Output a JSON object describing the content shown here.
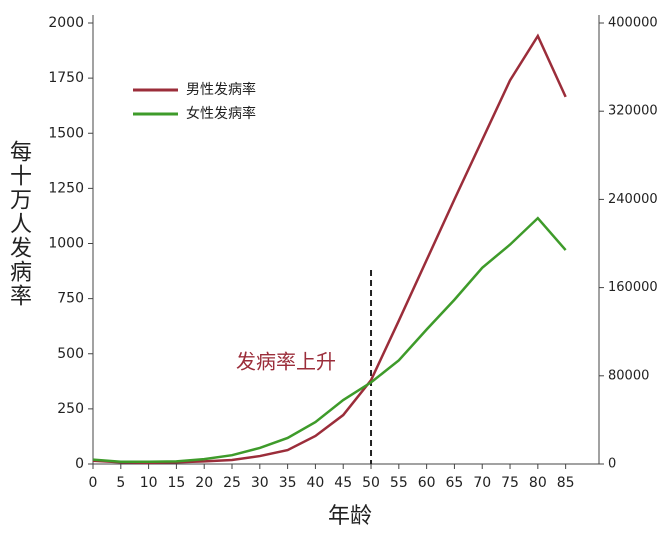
{
  "chart_data": {
    "type": "line",
    "y_label": "每十万人发病率",
    "x_label": "年龄",
    "annotation": "发病率上升",
    "x": [
      0,
      5,
      10,
      15,
      20,
      25,
      30,
      35,
      40,
      45,
      50,
      55,
      60,
      65,
      70,
      75,
      80,
      85
    ],
    "series": [
      {
        "name": "男性发病率",
        "color": "#9b2d3a",
        "values": [
          15,
          8,
          5,
          8,
          12,
          18,
          36,
          63,
          127,
          222,
          380,
          650,
          925,
          1200,
          1470,
          1740,
          1941,
          1665
        ]
      },
      {
        "name": "女性发病率",
        "color": "#3e9b2a",
        "values": [
          20,
          10,
          10,
          12,
          22,
          40,
          73,
          118,
          190,
          290,
          370,
          470,
          610,
          745,
          890,
          995,
          1115,
          970
        ]
      }
    ],
    "xlim": [
      0,
      91
    ],
    "xticks": [
      0,
      5,
      10,
      15,
      20,
      25,
      30,
      35,
      40,
      45,
      50,
      55,
      60,
      65,
      70,
      75,
      80,
      85
    ],
    "ylim": [
      0,
      2000
    ],
    "yticks": [
      0,
      250,
      500,
      750,
      1000,
      1250,
      1500,
      1750,
      2000
    ],
    "y2lim": [
      0,
      400000
    ],
    "y2ticks": [
      0,
      80000,
      160000,
      240000,
      320000,
      400000
    ],
    "vline": 50,
    "legend": "upper-left"
  }
}
